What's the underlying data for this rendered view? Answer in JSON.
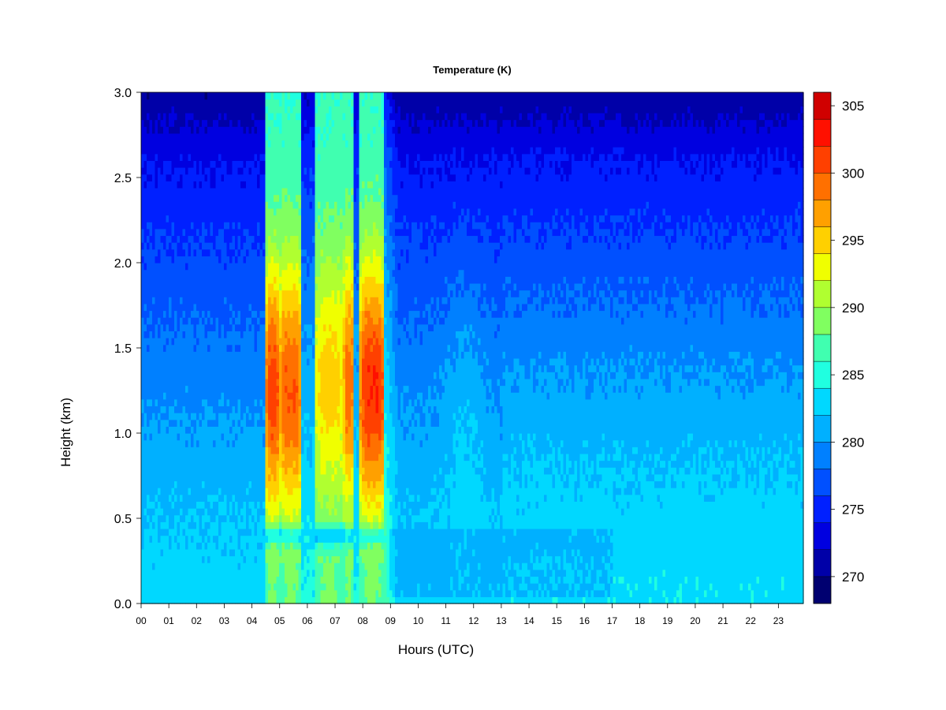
{
  "chart_data": {
    "type": "heatmap",
    "title": "Temperature (K)",
    "xlabel": "Hours (UTC)",
    "ylabel": "Height (km)",
    "xlim": [
      0,
      23.9
    ],
    "ylim": [
      0,
      3.0
    ],
    "x_ticks": [
      0,
      1,
      2,
      3,
      4,
      5,
      6,
      7,
      8,
      9,
      10,
      11,
      12,
      13,
      14,
      15,
      16,
      17,
      18,
      19,
      20,
      21,
      22,
      23
    ],
    "x_tick_labels": [
      "00",
      "01",
      "02",
      "03",
      "04",
      "05",
      "06",
      "07",
      "08",
      "09",
      "10",
      "11",
      "12",
      "13",
      "14",
      "15",
      "16",
      "17",
      "18",
      "19",
      "20",
      "21",
      "22",
      "23"
    ],
    "y_ticks": [
      0.0,
      0.5,
      1.0,
      1.5,
      2.0,
      2.5,
      3.0
    ],
    "y_tick_labels": [
      "0.0",
      "0.5",
      "1.0",
      "1.5",
      "2.0",
      "2.5",
      "3.0"
    ],
    "colorbar": {
      "label_values": [
        270,
        275,
        280,
        285,
        290,
        295,
        300,
        305
      ],
      "label_texts": [
        "270",
        "275",
        "280",
        "285",
        "290",
        "295",
        "300",
        "305"
      ],
      "levels": [
        268,
        306
      ],
      "step": 2,
      "colors": [
        "#000070",
        "#0000a8",
        "#0000e0",
        "#0020ff",
        "#0050ff",
        "#0080ff",
        "#00b0ff",
        "#00d8ff",
        "#20ffe0",
        "#40ffb0",
        "#80ff60",
        "#b0ff30",
        "#f0ff00",
        "#ffd000",
        "#ffa000",
        "#ff7000",
        "#ff4000",
        "#ff1000",
        "#d00000",
        "#a00000",
        "#700000"
      ]
    },
    "bands": [
      {
        "x_range": [
          4.5,
          5.0
        ],
        "peak_temp_K": 301,
        "peak_height_km": 1.25
      },
      {
        "x_range": [
          5.0,
          5.8
        ],
        "peak_temp_K": 300,
        "peak_height_km": 1.25
      },
      {
        "x_range": [
          6.3,
          7.3
        ],
        "peak_temp_K": 295,
        "peak_height_km": 1.3
      },
      {
        "x_range": [
          7.3,
          7.7
        ],
        "peak_temp_K": 299,
        "peak_height_km": 1.3
      },
      {
        "x_range": [
          7.9,
          8.8
        ],
        "peak_temp_K": 302,
        "peak_height_km": 1.25
      }
    ],
    "background": {
      "surface_temp_K": 283,
      "top_temp_K": 272,
      "afternoon_warm_temp_K": 284
    }
  }
}
